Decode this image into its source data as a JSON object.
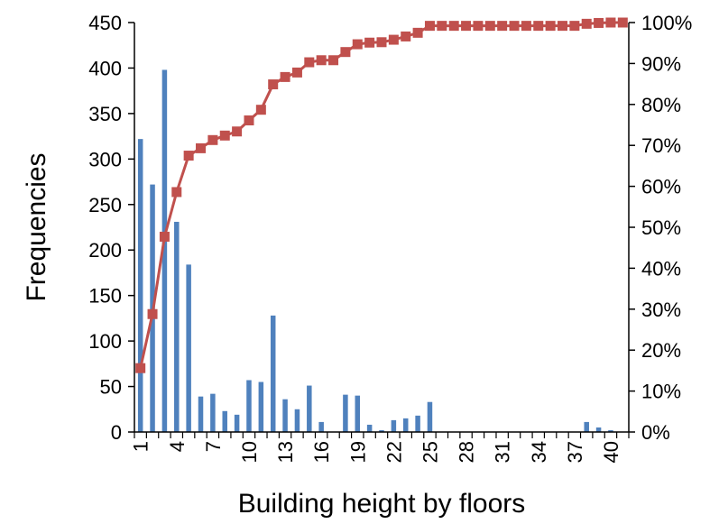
{
  "chart_data": {
    "type": "bar",
    "title": "",
    "xlabel": "Building height by floors",
    "ylabel": "Frequencies",
    "y2label": "",
    "ylim": [
      0,
      450
    ],
    "y2lim": [
      0,
      100
    ],
    "yticks": [
      0,
      50,
      100,
      150,
      200,
      250,
      300,
      350,
      400,
      450
    ],
    "y2ticks": [
      "0%",
      "10%",
      "20%",
      "30%",
      "40%",
      "50%",
      "60%",
      "70%",
      "80%",
      "90%",
      "100%"
    ],
    "y2tick_values": [
      0,
      10,
      20,
      30,
      40,
      50,
      60,
      70,
      80,
      90,
      100
    ],
    "xticks": [
      1,
      4,
      7,
      10,
      13,
      16,
      19,
      22,
      25,
      28,
      31,
      34,
      37,
      40
    ],
    "categories": [
      1,
      2,
      3,
      4,
      5,
      6,
      7,
      8,
      9,
      10,
      11,
      12,
      13,
      14,
      15,
      16,
      17,
      18,
      19,
      20,
      21,
      22,
      23,
      24,
      25,
      26,
      27,
      28,
      29,
      30,
      31,
      32,
      33,
      34,
      35,
      36,
      37,
      38,
      39,
      40,
      41
    ],
    "grid": false,
    "legend": "none",
    "series": [
      {
        "type": "bar",
        "axis": "left",
        "color": "#4F81BD",
        "values": [
          322,
          272,
          398,
          231,
          184,
          39,
          42,
          23,
          19,
          57,
          55,
          128,
          36,
          25,
          51,
          11,
          0,
          41,
          40,
          8,
          2,
          13,
          15,
          18,
          33,
          0,
          0,
          0,
          0,
          0,
          0,
          0,
          0,
          0,
          0,
          0,
          0,
          11,
          5,
          2,
          0
        ]
      },
      {
        "type": "line",
        "axis": "right",
        "color": "#C0504D",
        "marker": "square",
        "values": [
          15.6,
          28.8,
          47.7,
          58.6,
          67.5,
          69.3,
          71.3,
          72.4,
          73.4,
          76.1,
          78.7,
          84.9,
          86.7,
          87.8,
          90.3,
          90.8,
          90.8,
          92.8,
          94.7,
          95.1,
          95.2,
          95.8,
          96.6,
          97.5,
          99.2,
          99.2,
          99.2,
          99.2,
          99.2,
          99.2,
          99.2,
          99.2,
          99.2,
          99.2,
          99.2,
          99.2,
          99.2,
          99.7,
          99.9,
          100,
          100
        ]
      }
    ]
  }
}
